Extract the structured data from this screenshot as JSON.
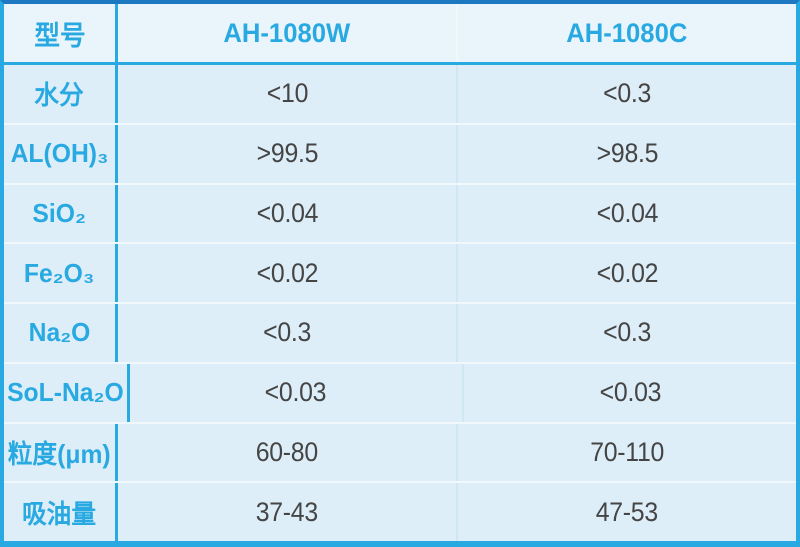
{
  "colors": {
    "accent": "#29A9E1",
    "border_top": "#1C78C0",
    "header_bg": "#E9F4FB",
    "row_bg": "#DDEEF8",
    "divider_light": "#F0F8FC",
    "divider_col": "#CFE6F3",
    "value_text": "#454545"
  },
  "chart_data": {
    "type": "table",
    "title": "",
    "columns": [
      "型号",
      "AH-1080W",
      "AH-1080C"
    ],
    "rows": [
      {
        "label": "水分",
        "values": [
          "<10",
          "<0.3"
        ]
      },
      {
        "label": "AL(OH)₃",
        "values": [
          ">99.5",
          ">98.5"
        ]
      },
      {
        "label": "SiO₂",
        "values": [
          "<0.04",
          "<0.04"
        ]
      },
      {
        "label": "Fe₂O₃",
        "values": [
          "<0.02",
          "<0.02"
        ]
      },
      {
        "label": "Na₂O",
        "values": [
          "<0.3",
          "<0.3"
        ]
      },
      {
        "label": "SoL-Na₂O",
        "values": [
          "<0.03",
          "<0.03"
        ]
      },
      {
        "label": "粒度(μm)",
        "values": [
          "60-80",
          "70-110"
        ]
      },
      {
        "label": "吸油量",
        "values": [
          "37-43",
          "47-53"
        ]
      }
    ]
  }
}
